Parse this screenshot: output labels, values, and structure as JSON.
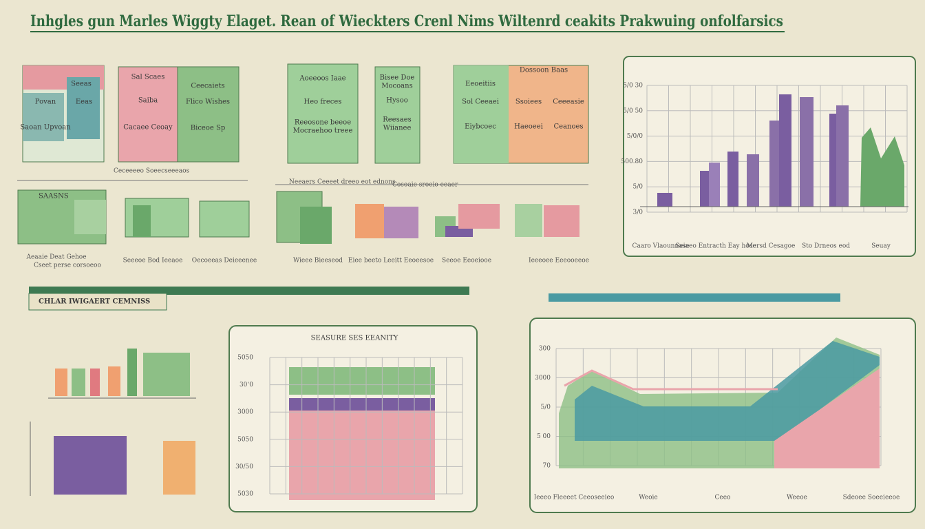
{
  "title": "Inhgles gun Marles Wiggty Elaget. Rean of Wieckters Crenl Nims Wiltenrd ceakits Prakwuing onfolfarsics",
  "section_label": "CHLAR IWIGAERT CEMNISS",
  "cards": [
    [
      "Seeas",
      "Povan",
      "Eeas",
      "Saoan Upvoan"
    ],
    [
      "Sal Scaes",
      "Saiba",
      "Cacaee Ceoay",
      "Ceecaiets",
      "Flico Wishes",
      "Biceoe Sp"
    ],
    [
      "Aoeeoos Iaae",
      "Heo freces",
      "Reeosone beeoe",
      "Mocraehoo treee"
    ],
    [
      "Bisee Doe",
      "Mocoans",
      "Hysoo",
      "Reesaes",
      "Wiianee"
    ],
    [
      "Dossoon Baas",
      "Eeoeitiis",
      "Sol Ceeaei",
      "Ssoiees",
      "Ceeeasie",
      "Eiybcoec",
      "Haeoeei",
      "Ceanoes"
    ]
  ],
  "row2_heading": [
    "Ceceeeeo Soeecseeeaos",
    "Neeaers Ceeeet dreeo eot ednons",
    "Cosoaie sroeio eeaer"
  ],
  "row2_label": "SAASNS",
  "captions": [
    "Aeaaie Deat Gehoe",
    "Cseet perse corsoeoo",
    "Seeeoe Bod Ieeaoe",
    "Oecoeeas Deieeenee",
    "Wieee Bieeseod",
    "Eiee beeto Leeitt Eeoeesoe",
    "Seeoe Eeoeiooe",
    "Ieeeoee Eeeooeeoe"
  ],
  "top_chart": {
    "yticks": [
      "5/0 30",
      "5/0 50",
      "5/0/0",
      "500.80",
      "5/0",
      "3/0"
    ],
    "xlabels": [
      "Caaro Vlaounnase",
      "Seiaeo Entracth Eay hose",
      "Mersd Cesagoe",
      "Sto Drneos eod",
      "Seuay"
    ]
  },
  "middle_chart": {
    "title": "SEASURE SES EEANITY",
    "yticks": [
      "5050",
      "30ʻ0",
      "3000",
      "5050",
      "30/50",
      "5030"
    ]
  },
  "right_chart": {
    "yticks": [
      "300",
      "3000",
      "5/0",
      "5 00",
      "70"
    ],
    "xlabels": [
      "Ieeeo Fleeeet Ceeoseeieo",
      "Weoie",
      "Ceeo",
      "Weeoe",
      "Sdeoee Soeeieeoe"
    ]
  }
}
